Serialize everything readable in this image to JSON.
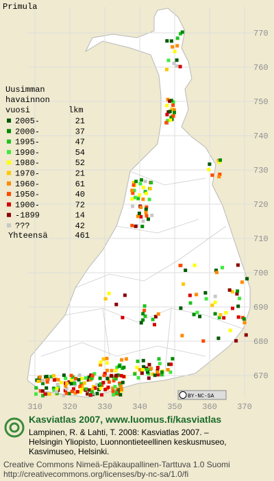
{
  "title": "Primula",
  "legend": {
    "heading": [
      "Uusimman",
      "havainnon",
      "vuosi"
    ],
    "count_heading": "lkm",
    "items": [
      {
        "label": "2005-",
        "count": "21",
        "color": "#005a00"
      },
      {
        "label": "2000-",
        "count": "37",
        "color": "#008a00"
      },
      {
        "label": "1995-",
        "count": "47",
        "color": "#20c020"
      },
      {
        "label": "1990-",
        "count": "54",
        "color": "#40e840"
      },
      {
        "label": "1980-",
        "count": "52",
        "color": "#ffff00"
      },
      {
        "label": "1970-",
        "count": "21",
        "color": "#ffc800"
      },
      {
        "label": "1960-",
        "count": "61",
        "color": "#ff8a00"
      },
      {
        "label": "1950-",
        "count": "40",
        "color": "#ff4a00"
      },
      {
        "label": "1900-",
        "count": "72",
        "color": "#d80000"
      },
      {
        "label": "-1899",
        "count": "14",
        "color": "#8a0000"
      },
      {
        "label": "???",
        "count": "42",
        "color": "#c8c8c8"
      }
    ],
    "total_label": "Yhteensä",
    "total": "461"
  },
  "grid": {
    "north": [
      "770",
      "760",
      "750",
      "740",
      "730",
      "720",
      "710",
      "700",
      "690",
      "680",
      "670"
    ],
    "east": [
      "310",
      "320",
      "330",
      "340",
      "350",
      "360",
      "370"
    ]
  },
  "badge": "BY-NC-SA",
  "footer": {
    "headline": "Kasviatlas 2007, www.luomus.fi/kasviatlas",
    "citation": [
      "Lampinen, R. & Lahti, T. 2008: Kasviatlas 2007. –",
      "Helsingin Yliopisto, Luonnontieteellinen keskusmuseo,",
      "Kasvimuseo, Helsinki."
    ],
    "license": [
      "Creative Commons Nimeä-Epäkaupallinen-Tarttuva 1.0 Suomi",
      "http://creativecommons.org/licenses/by-nc-sa/1.0/fi"
    ]
  }
}
